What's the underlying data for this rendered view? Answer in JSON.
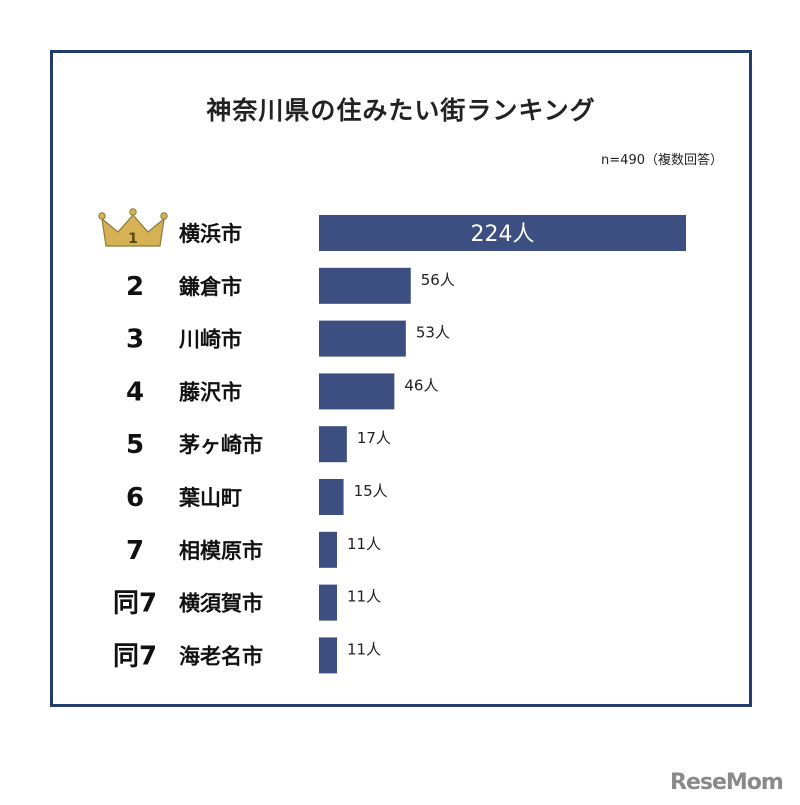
{
  "title": "神奈川県の住みたい街ランキング",
  "note": "n=490（複数回答）",
  "watermark": "ReseMom",
  "colors": {
    "bar": "#3d4e80",
    "frame": "#233d6b",
    "crown": "#d7b255",
    "crown_stroke": "#8d7a3a"
  },
  "chart_data": {
    "type": "bar",
    "orientation": "horizontal",
    "unit": "人",
    "title": "神奈川県の住みたい街ランキング",
    "ranks": [
      "1",
      "2",
      "3",
      "4",
      "5",
      "6",
      "7",
      "同7",
      "同7"
    ],
    "categories": [
      "横浜市",
      "鎌倉市",
      "川崎市",
      "藤沢市",
      "茅ヶ崎市",
      "葉山町",
      "相模原市",
      "横須賀市",
      "海老名市"
    ],
    "values": [
      224,
      56,
      53,
      46,
      17,
      15,
      11,
      11,
      11
    ],
    "value_labels": [
      "224人",
      "56人",
      "53人",
      "46人",
      "17人",
      "15人",
      "11人",
      "11人",
      "11人"
    ]
  }
}
